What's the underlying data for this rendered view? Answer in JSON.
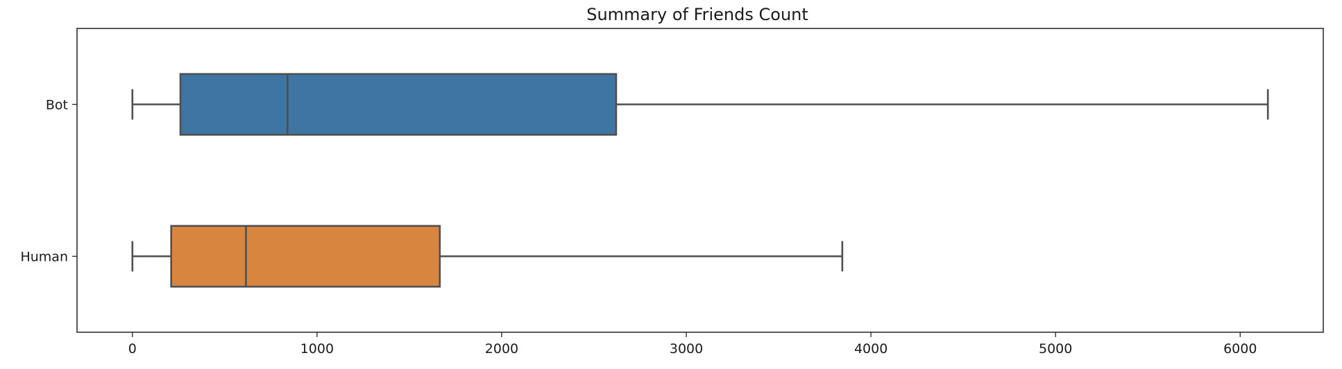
{
  "chart_data": {
    "type": "box",
    "orientation": "horizontal",
    "title": "Summary of Friends Count",
    "xlabel": "",
    "ylabel": "",
    "xlim": [
      -300,
      6450
    ],
    "xticks": [
      0,
      1000,
      2000,
      3000,
      4000,
      5000,
      6000
    ],
    "grid": false,
    "categories": [
      "Bot",
      "Human"
    ],
    "series": [
      {
        "category": "Bot",
        "whisker_low": 0,
        "q1": 260,
        "median": 840,
        "q3": 2620,
        "whisker_high": 6150,
        "color": "#3f75a2"
      },
      {
        "category": "Human",
        "whisker_low": 0,
        "q1": 210,
        "median": 615,
        "q3": 1665,
        "whisker_high": 3845,
        "color": "#d88540"
      }
    ],
    "line_color": "#4f4f4f"
  }
}
